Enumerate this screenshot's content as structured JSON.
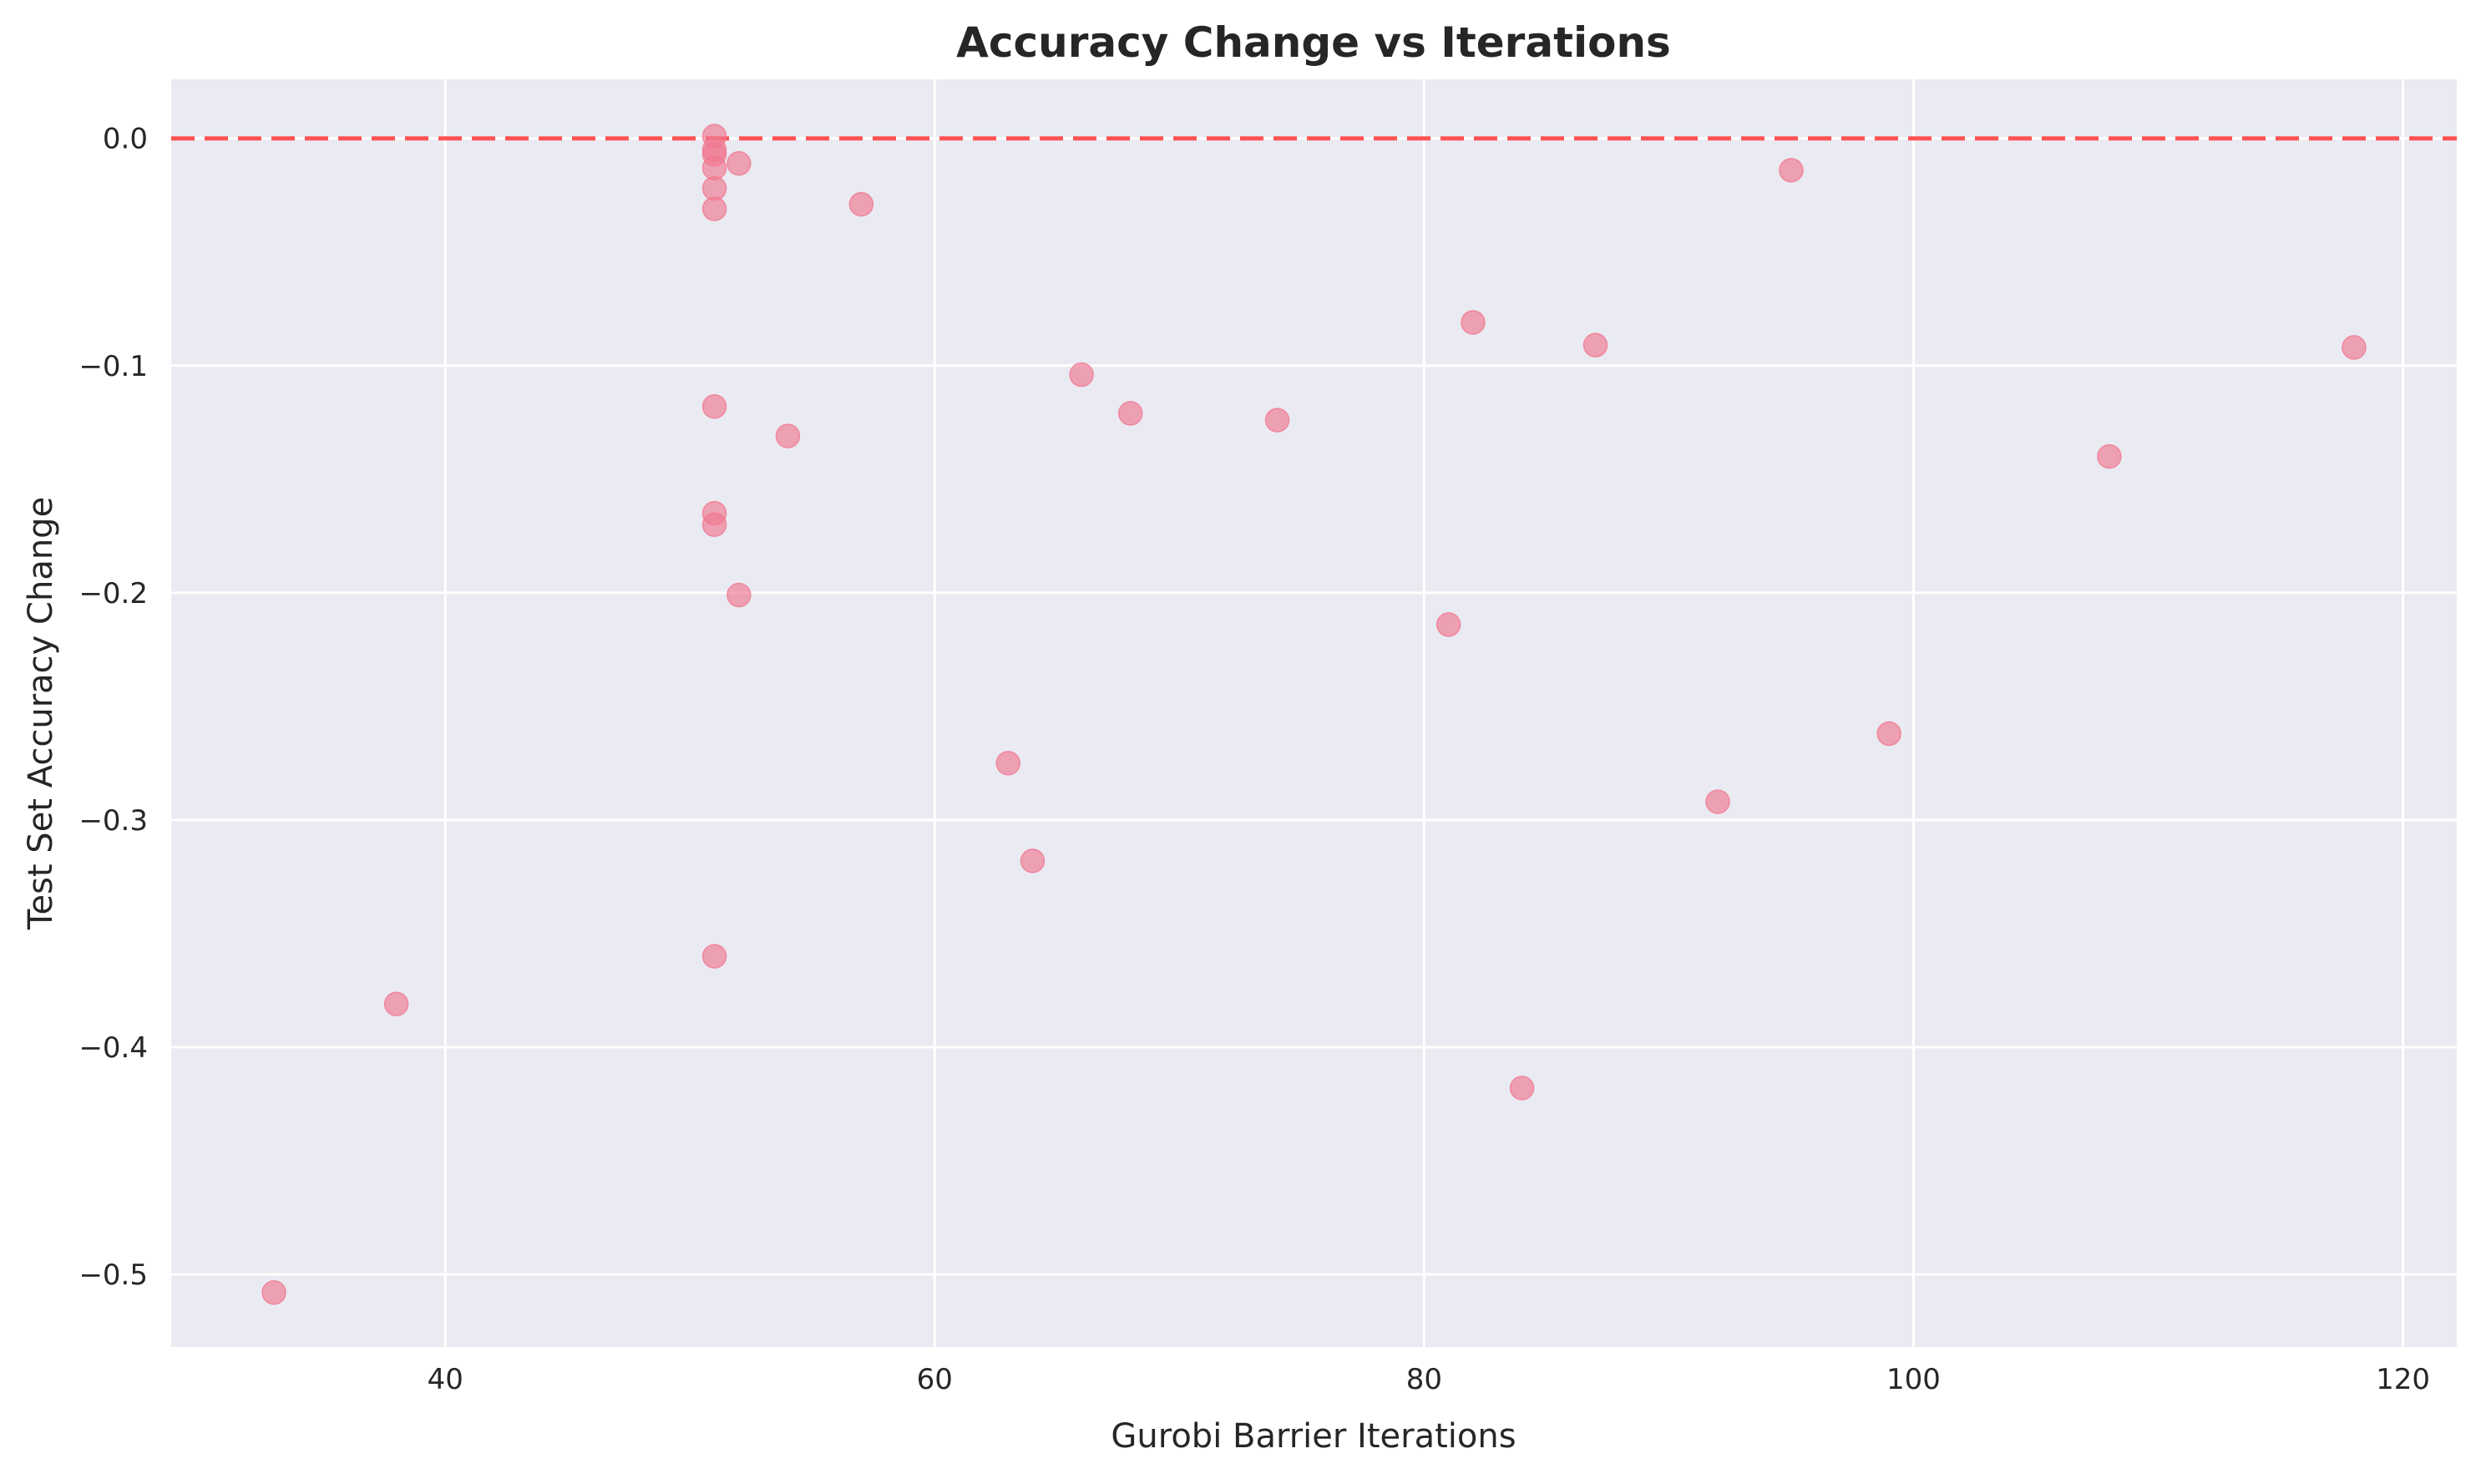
{
  "chart_data": {
    "type": "scatter",
    "title": "Accuracy Change vs Iterations",
    "xlabel": "Gurobi Barrier Iterations",
    "ylabel": "Test Set Accuracy Change",
    "xlim": [
      28.8,
      122.2
    ],
    "ylim": [
      -0.532,
      0.026
    ],
    "xticks": [
      40,
      60,
      80,
      100,
      120
    ],
    "yticks": [
      0.0,
      -0.1,
      -0.2,
      -0.3,
      -0.4,
      -0.5
    ],
    "ytick_labels": [
      "0.0",
      "−0.1",
      "−0.2",
      "−0.3",
      "−0.4",
      "−0.5"
    ],
    "grid": true,
    "reference_line": {
      "y": 0.0,
      "style": "dashed",
      "color": "#ff4a4a"
    },
    "colors": {
      "point": "#f07890",
      "background": "#eaeaf2",
      "grid": "#ffffff"
    },
    "points": [
      {
        "x": 51,
        "y": 0.001
      },
      {
        "x": 51,
        "y": -0.005
      },
      {
        "x": 51,
        "y": -0.007
      },
      {
        "x": 51,
        "y": -0.013
      },
      {
        "x": 52,
        "y": -0.011
      },
      {
        "x": 51,
        "y": -0.022
      },
      {
        "x": 51,
        "y": -0.031
      },
      {
        "x": 57,
        "y": -0.029
      },
      {
        "x": 95,
        "y": -0.014
      },
      {
        "x": 82,
        "y": -0.081
      },
      {
        "x": 87,
        "y": -0.091
      },
      {
        "x": 118,
        "y": -0.092
      },
      {
        "x": 66,
        "y": -0.104
      },
      {
        "x": 51,
        "y": -0.118
      },
      {
        "x": 68,
        "y": -0.121
      },
      {
        "x": 74,
        "y": -0.124
      },
      {
        "x": 54,
        "y": -0.131
      },
      {
        "x": 108,
        "y": -0.14
      },
      {
        "x": 51,
        "y": -0.165
      },
      {
        "x": 51,
        "y": -0.17
      },
      {
        "x": 52,
        "y": -0.201
      },
      {
        "x": 81,
        "y": -0.214
      },
      {
        "x": 99,
        "y": -0.262
      },
      {
        "x": 63,
        "y": -0.275
      },
      {
        "x": 92,
        "y": -0.292
      },
      {
        "x": 64,
        "y": -0.318
      },
      {
        "x": 51,
        "y": -0.36
      },
      {
        "x": 38,
        "y": -0.381
      },
      {
        "x": 84,
        "y": -0.418
      },
      {
        "x": 33,
        "y": -0.508
      }
    ]
  }
}
